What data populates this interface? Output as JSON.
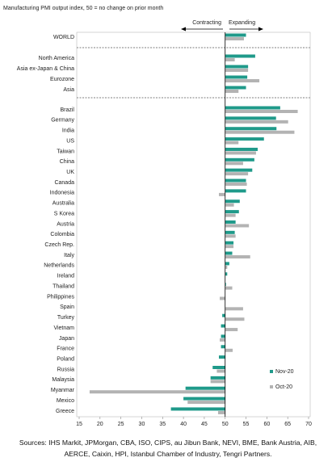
{
  "chart_data": {
    "type": "hbar",
    "title": "Manufacturing PMI output index, 50 = no change on prior month",
    "annotations": [
      "Contracting",
      "Expanding"
    ],
    "source": "Sources: IHS Markit, JPMorgan, CBA, ISO, CIPS, au Jibun Bank, NEVI, BME, Bank Austria, AIB, AERCE, Caixin, HPI, Istanbul Chamber of Industry, Tengri Partners.",
    "categories": [
      "WORLD",
      "North America",
      "Asia ex-Japan & China",
      "Eurozone",
      "Asia",
      "Brazil",
      "Germany",
      "India",
      "US",
      "Taiwan",
      "China",
      "UK",
      "Canada",
      "Indonesia",
      "Australia",
      "S Korea",
      "Austria",
      "Colombia",
      "Czech Rep.",
      "Italy",
      "Netherlands",
      "Ireland",
      "Thailand",
      "Philippines",
      "Spain",
      "Turkey",
      "Vietnam",
      "Japan",
      "France",
      "Poland",
      "Russia",
      "Malaysia",
      "Myanmar",
      "Mexico",
      "Greece"
    ],
    "series": [
      {
        "name": "Nov-20",
        "color": "#1f9a8a",
        "values": [
          55,
          57.2,
          55.5,
          55.3,
          55,
          63.2,
          62.2,
          62.3,
          59.3,
          57.8,
          57,
          56.5,
          55,
          55,
          53.5,
          53.3,
          52.5,
          52.3,
          52,
          51.7,
          51,
          50.5,
          50.2,
          50,
          50,
          49.3,
          49,
          49,
          49,
          48.5,
          47,
          46.5,
          40.5,
          40,
          37
        ]
      },
      {
        "name": "Oct-20",
        "color": "#b3b3b3",
        "values": [
          54.5,
          52.3,
          55.5,
          58.2,
          53.2,
          67.4,
          65.1,
          66.6,
          53.2,
          57.4,
          54.3,
          55.5,
          55.2,
          48.5,
          52.1,
          52.5,
          55.7,
          52.5,
          52,
          56,
          50.5,
          50,
          51.7,
          48.7,
          54.3,
          54.6,
          53,
          48.7,
          51.8,
          50,
          48,
          46.5,
          17.5,
          41,
          48.3
        ]
      }
    ],
    "xlim": [
      15,
      70
    ],
    "xticks": [
      15,
      20,
      25,
      30,
      35,
      40,
      45,
      50,
      55,
      60,
      65,
      70
    ],
    "baseline": 50
  }
}
